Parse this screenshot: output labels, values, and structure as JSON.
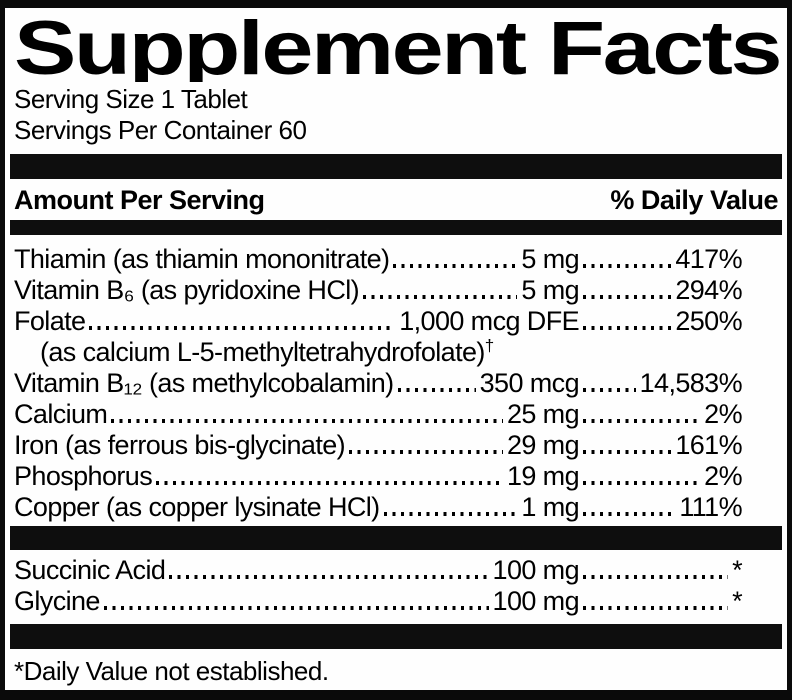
{
  "label": {
    "title": "Supplement Facts",
    "serving_size": "Serving Size 1 Tablet",
    "servings_per_container": "Servings Per Container 60",
    "column_headers": {
      "left": "Amount Per Serving",
      "right": "% Daily Value"
    },
    "nutrients": [
      {
        "name": "Thiamin (as thiamin mononitrate)",
        "amount": "5 mg",
        "daily_value": "417%"
      },
      {
        "name": "Vitamin B₆ (as pyridoxine HCl)",
        "amount": "5 mg",
        "daily_value": "294%"
      },
      {
        "name": "Folate",
        "amount": "1,000 mcg DFE",
        "daily_value": "250%"
      },
      {
        "name": "Vitamin B₁₂ (as methylcobalamin)",
        "amount": "350 mcg",
        "daily_value": "14,583%"
      },
      {
        "name": "Calcium",
        "amount": "25 mg",
        "daily_value": "2%"
      },
      {
        "name": "Iron (as ferrous bis-glycinate)",
        "amount": "29 mg",
        "daily_value": "161%"
      },
      {
        "name": "Phosphorus",
        "amount": "19 mg",
        "daily_value": "2%"
      },
      {
        "name": "Copper (as copper lysinate HCl)",
        "amount": "1 mg",
        "daily_value": "111%"
      }
    ],
    "folate_note": {
      "text": "(as calcium L-5-methyltetrahydrofolate)",
      "superscript": "†"
    },
    "other_ingredients": [
      {
        "name": "Succinic Acid",
        "amount": "100 mg",
        "daily_value": "*"
      },
      {
        "name": "Glycine",
        "amount": "100 mg",
        "daily_value": "*"
      }
    ],
    "footnote": "*Daily Value not established.",
    "colors": {
      "ink": "#000000",
      "background": "#ffffff"
    }
  }
}
